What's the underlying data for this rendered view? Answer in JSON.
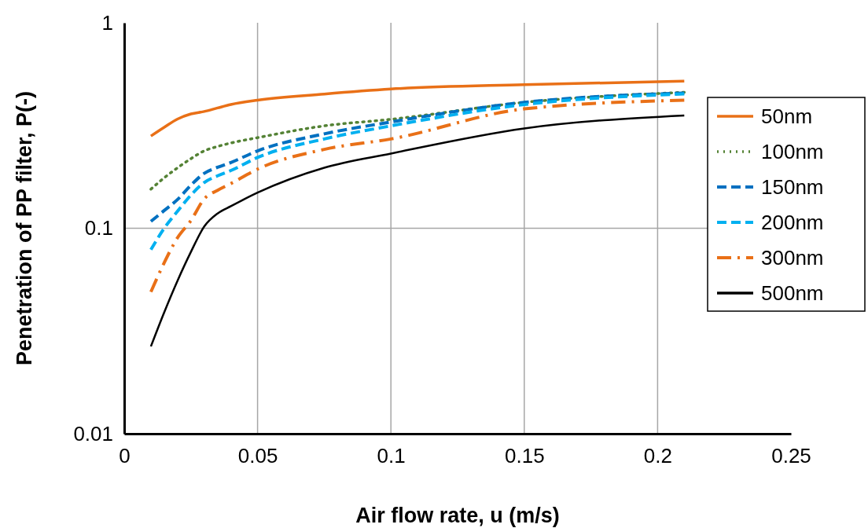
{
  "chart_data": {
    "type": "line",
    "xlabel": "Air flow rate, u (m/s)",
    "ylabel": "Penetration of PP filter, P(-)",
    "x": [
      0.01,
      0.015,
      0.02,
      0.025,
      0.03,
      0.035,
      0.04,
      0.05,
      0.075,
      0.1,
      0.15,
      0.21
    ],
    "series": [
      {
        "name": "50nm",
        "color": "#e97017",
        "line_style": "solid",
        "values": [
          0.281,
          0.31,
          0.34,
          0.36,
          0.37,
          0.385,
          0.4,
          0.42,
          0.45,
          0.476,
          0.5,
          0.52
        ]
      },
      {
        "name": "100nm",
        "color": "#548235",
        "line_style": "dotted",
        "values": [
          0.155,
          0.176,
          0.197,
          0.218,
          0.238,
          0.25,
          0.26,
          0.276,
          0.315,
          0.339,
          0.41,
          0.459
        ]
      },
      {
        "name": "150nm",
        "color": "#0070c0",
        "line_style": "dashed",
        "values": [
          0.108,
          0.122,
          0.138,
          0.162,
          0.185,
          0.198,
          0.209,
          0.238,
          0.288,
          0.329,
          0.41,
          0.455
        ]
      },
      {
        "name": "200nm",
        "color": "#00b0f0",
        "line_style": "dashed",
        "values": [
          0.0786,
          0.1,
          0.121,
          0.145,
          0.167,
          0.18,
          0.191,
          0.221,
          0.272,
          0.315,
          0.4,
          0.451
        ]
      },
      {
        "name": "300nm",
        "color": "#e97017",
        "line_style": "dashdot",
        "values": [
          0.049,
          0.068,
          0.09,
          0.109,
          0.139,
          0.153,
          0.165,
          0.194,
          0.242,
          0.272,
          0.381,
          0.42
        ]
      },
      {
        "name": "500nm",
        "color": "#000000",
        "line_style": "solid",
        "values": [
          0.0266,
          0.039,
          0.0556,
          0.0767,
          0.102,
          0.118,
          0.128,
          0.149,
          0.197,
          0.231,
          0.306,
          0.354
        ]
      }
    ],
    "xlim": [
      0,
      0.25
    ],
    "xticks": [
      0,
      0.05,
      0.1,
      0.15,
      0.2,
      0.25
    ],
    "ylim": [
      0.01,
      1
    ],
    "yticks": [
      0.01,
      0.1,
      1
    ],
    "log": "y",
    "grid": true,
    "legend": "right"
  }
}
